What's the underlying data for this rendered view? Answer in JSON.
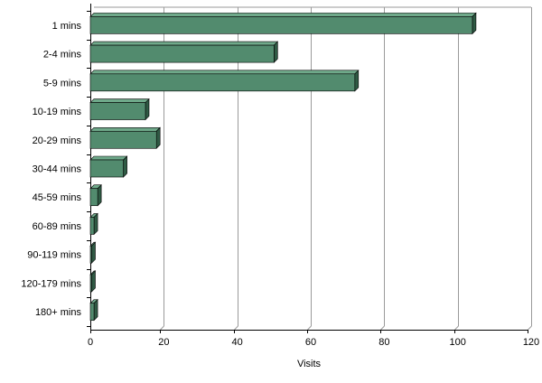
{
  "chart_data": {
    "type": "bar",
    "orientation": "horizontal",
    "style": "3d",
    "categories": [
      "1 mins",
      "2-4 mins",
      "5-9 mins",
      "10-19 mins",
      "20-29 mins",
      "30-44 mins",
      "45-59 mins",
      "60-89 mins",
      "90-119 mins",
      "120-179 mins",
      "180+ mins"
    ],
    "values": [
      104,
      50,
      72,
      15,
      18,
      9,
      2,
      1,
      0,
      0,
      1
    ],
    "title": "",
    "xlabel": "Visits",
    "ylabel": "",
    "xlim": [
      0,
      120
    ],
    "xticks": [
      "0",
      "20",
      "40",
      "60",
      "80",
      "100",
      "120"
    ],
    "grid": "vertical",
    "legend": "none",
    "colors": {
      "bar_front": "#528B6E",
      "bar_top": "#6FA98A",
      "bar_side": "#2F5A44",
      "grid": "#9A9A9A",
      "axis": "#000000"
    }
  }
}
